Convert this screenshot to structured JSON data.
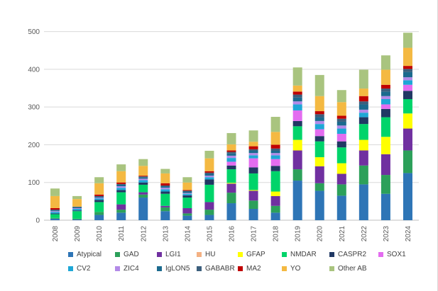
{
  "chart_data": {
    "type": "bar",
    "stacked": true,
    "title": "",
    "xlabel": "",
    "ylabel": "",
    "ylim": [
      0,
      550
    ],
    "yticks": [
      0,
      100,
      200,
      300,
      400,
      500
    ],
    "grid": true,
    "legend_position": "bottom",
    "categories": [
      "2008",
      "2009",
      "2010",
      "2011",
      "2012",
      "2013",
      "2014",
      "2015",
      "2016",
      "2017",
      "2018",
      "2019",
      "2020",
      "2021",
      "2022",
      "2023",
      "2024"
    ],
    "series": [
      {
        "name": "Atypical",
        "color": "#2E75B6",
        "values": [
          4,
          2,
          14,
          20,
          60,
          24,
          12,
          14,
          45,
          30,
          20,
          105,
          78,
          65,
          95,
          70,
          125
        ]
      },
      {
        "name": "GAD",
        "color": "#2CA05A",
        "values": [
          2,
          2,
          8,
          8,
          8,
          10,
          6,
          14,
          28,
          22,
          18,
          30,
          20,
          30,
          50,
          50,
          60
        ]
      },
      {
        "name": "LGI1",
        "color": "#7030A0",
        "values": [
          0,
          0,
          0,
          14,
          6,
          4,
          14,
          20,
          24,
          26,
          26,
          50,
          45,
          28,
          40,
          55,
          58
        ]
      },
      {
        "name": "HU",
        "color": "#F4B183",
        "values": [
          0,
          0,
          0,
          0,
          0,
          0,
          0,
          0,
          0,
          0,
          0,
          0,
          0,
          0,
          0,
          0,
          0
        ]
      },
      {
        "name": "GFAP",
        "color": "#FFFF00",
        "values": [
          0,
          0,
          0,
          0,
          0,
          0,
          0,
          0,
          2,
          2,
          12,
          28,
          24,
          28,
          28,
          46,
          40
        ]
      },
      {
        "name": "NMDAR",
        "color": "#00D46A",
        "values": [
          10,
          20,
          26,
          32,
          20,
          32,
          28,
          46,
          36,
          44,
          54,
          36,
          42,
          42,
          42,
          52,
          38
        ]
      },
      {
        "name": "CASPR2",
        "color": "#203864",
        "values": [
          2,
          2,
          6,
          6,
          6,
          6,
          6,
          14,
          10,
          16,
          14,
          14,
          14,
          16,
          18,
          22,
          22
        ]
      },
      {
        "name": "SOX1",
        "color": "#E36CF0",
        "values": [
          0,
          0,
          0,
          0,
          0,
          0,
          0,
          0,
          10,
          24,
          18,
          28,
          18,
          20,
          0,
          12,
          16
        ]
      },
      {
        "name": "CV2",
        "color": "#1EA7D6",
        "values": [
          4,
          4,
          4,
          6,
          6,
          6,
          4,
          6,
          10,
          8,
          10,
          16,
          14,
          14,
          12,
          14,
          12
        ]
      },
      {
        "name": "ZIC4",
        "color": "#B38AE8",
        "values": [
          2,
          2,
          2,
          4,
          4,
          4,
          2,
          4,
          6,
          6,
          6,
          8,
          8,
          8,
          8,
          8,
          8
        ]
      },
      {
        "name": "IgLON5",
        "color": "#1B6A8E",
        "values": [
          2,
          2,
          2,
          4,
          4,
          4,
          4,
          4,
          6,
          6,
          6,
          10,
          10,
          10,
          14,
          12,
          14
        ]
      },
      {
        "name": "GABABR",
        "color": "#3C5F7D",
        "values": [
          2,
          2,
          2,
          2,
          2,
          2,
          2,
          4,
          4,
          4,
          6,
          8,
          8,
          8,
          8,
          8,
          8
        ]
      },
      {
        "name": "MA2",
        "color": "#C00000",
        "values": [
          4,
          0,
          4,
          4,
          2,
          6,
          2,
          4,
          4,
          8,
          10,
          8,
          8,
          8,
          14,
          10,
          8
        ]
      },
      {
        "name": "YO",
        "color": "#F4B942",
        "values": [
          32,
          20,
          30,
          30,
          26,
          26,
          20,
          34,
          16,
          12,
          34,
          16,
          40,
          36,
          20,
          40,
          48
        ]
      },
      {
        "name": "Other AB",
        "color": "#A9C47F",
        "values": [
          20,
          8,
          16,
          18,
          18,
          12,
          14,
          20,
          30,
          30,
          40,
          48,
          56,
          32,
          50,
          38,
          40
        ]
      }
    ]
  }
}
